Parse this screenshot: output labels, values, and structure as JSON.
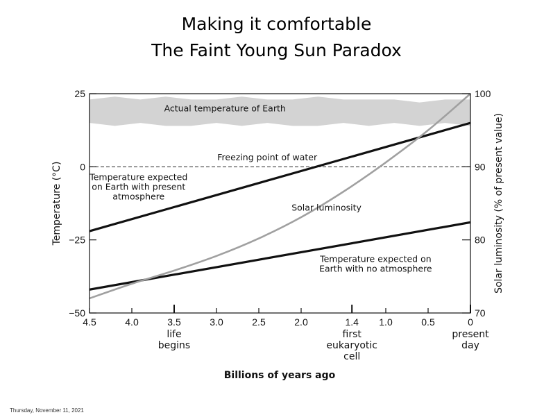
{
  "page": {
    "title_line1": "Making it comfortable",
    "title_line2": "The Faint Young Sun Paradox",
    "footer_date": "Thursday, November 11, 2021"
  },
  "chart_data": {
    "type": "line",
    "x_title": "Billions of years ago",
    "y_left_title": "Temperature (°C)",
    "y_right_title": "Solar luminosity (% of present value)",
    "x_ticks": [
      "4.5",
      "4.0",
      "3.5",
      "3.0",
      "2.5",
      "2.0",
      "1.4",
      "1.0",
      "0.5",
      "0"
    ],
    "x_tick_values": [
      4.5,
      4.0,
      3.5,
      3.0,
      2.5,
      2.0,
      1.4,
      1.0,
      0.5,
      0
    ],
    "xlim": [
      4.5,
      0
    ],
    "y_left_ticks": [
      "25",
      "0",
      "−25",
      "−50"
    ],
    "y_left_tick_values": [
      25,
      0,
      -25,
      -50
    ],
    "ylim_left": [
      -50,
      25
    ],
    "y_right_ticks": [
      "100",
      "90",
      "80",
      "70"
    ],
    "y_right_tick_values": [
      100,
      90,
      80,
      70
    ],
    "ylim_right": [
      70,
      100
    ],
    "milestones": [
      {
        "x": 3.5,
        "lines": [
          "life",
          "begins"
        ]
      },
      {
        "x": 1.4,
        "lines": [
          "first",
          "eukaryotic",
          "cell"
        ]
      },
      {
        "x": 0,
        "lines": [
          "present",
          "day"
        ]
      }
    ],
    "band": {
      "name": "Actual temperature of Earth",
      "color": "#d3d3d3",
      "x": [
        4.5,
        4.2,
        3.9,
        3.6,
        3.3,
        3.0,
        2.7,
        2.4,
        2.1,
        1.8,
        1.5,
        1.2,
        0.9,
        0.6,
        0.3,
        0
      ],
      "upper": [
        23,
        24,
        23,
        24,
        23,
        23,
        24,
        23,
        23,
        24,
        23,
        23,
        23,
        22,
        23,
        23
      ],
      "lower": [
        15,
        14,
        15,
        14,
        14,
        15,
        14,
        15,
        14,
        14,
        15,
        14,
        15,
        14,
        15,
        14
      ]
    },
    "reference_line": {
      "name": "Freezing point of water",
      "y": 0
    },
    "series": [
      {
        "name": "Temperature expected on Earth with present atmosphere",
        "axis": "left",
        "color": "#111111",
        "x": [
          4.5,
          0
        ],
        "y": [
          -22,
          15
        ]
      },
      {
        "name": "Temperature expected on Earth with no atmosphere",
        "axis": "left",
        "color": "#111111",
        "x": [
          4.5,
          0
        ],
        "y": [
          -42,
          -19
        ]
      },
      {
        "name": "Solar luminosity",
        "axis": "right",
        "color": "#a0a0a0",
        "x": [
          4.5,
          4.0,
          3.5,
          3.0,
          2.5,
          2.0,
          1.5,
          1.0,
          0.5,
          0
        ],
        "y": [
          72,
          74,
          75.8,
          77.8,
          80.2,
          83.1,
          86.6,
          90.6,
          95.0,
          100
        ]
      }
    ],
    "annotations": [
      {
        "lines": [
          "Actual temperature of Earth"
        ],
        "x": 2.9,
        "y": 19
      },
      {
        "lines": [
          "Freezing point of water"
        ],
        "x": 2.4,
        "y": 2.2
      },
      {
        "lines": [
          "Temperature expected",
          "on Earth with present",
          "atmosphere"
        ],
        "x": 3.92,
        "y": -4.5
      },
      {
        "lines": [
          "Solar luminosity"
        ],
        "x": 1.7,
        "y": -15
      },
      {
        "lines": [
          "Temperature expected on",
          "Earth with no atmosphere"
        ],
        "x": 1.12,
        "y": -32.5
      }
    ]
  }
}
